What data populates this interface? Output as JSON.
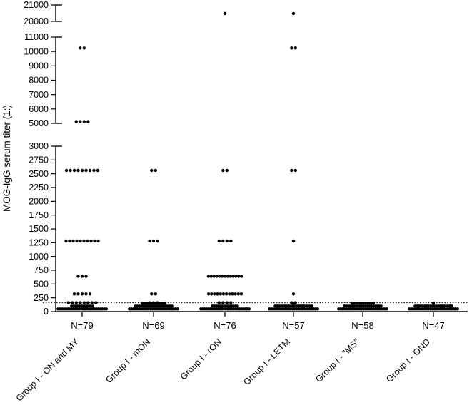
{
  "figure": {
    "background_color": "#ffffff",
    "dot_color": "#000000",
    "axis_color": "#000000",
    "cutoff_line_style": "dotted"
  },
  "chart_data": {
    "type": "scatter",
    "title": "",
    "xlabel": "",
    "ylabel": "MOG-IgG serum titer (1:)",
    "grid": false,
    "legend": false,
    "cutoff_titer": 160,
    "axis_segments": [
      {
        "min": 0,
        "max": 3000,
        "tick_step": 250
      },
      {
        "min": 5000,
        "max": 11000,
        "tick_step": 1000
      },
      {
        "min": 20000,
        "max": 21000,
        "tick_step": 1000
      }
    ],
    "y_tick_labels": [
      "0",
      "250",
      "500",
      "750",
      "1000",
      "1250",
      "1500",
      "1750",
      "2000",
      "2250",
      "2500",
      "2750",
      "3000",
      "5000",
      "6000",
      "7000",
      "8000",
      "9000",
      "10000",
      "11000",
      "20000",
      "21000"
    ],
    "groups": [
      {
        "label": "Group I - ON and MY",
        "n_label": "N=79",
        "n": 79,
        "titers": [
          {
            "titer": 10240,
            "count": 2
          },
          {
            "titer": 5120,
            "count": 4
          },
          {
            "titer": 2560,
            "count": 9
          },
          {
            "titer": 1280,
            "count": 10
          },
          {
            "titer": 640,
            "count": 3
          },
          {
            "titer": 320,
            "count": 5
          },
          {
            "titer": 160,
            "count": 8
          },
          {
            "titer": 0,
            "count": 38
          }
        ]
      },
      {
        "label": "Group I - mON",
        "n_label": "N=69",
        "n": 69,
        "titers": [
          {
            "titer": 2560,
            "count": 2
          },
          {
            "titer": 1280,
            "count": 3
          },
          {
            "titer": 320,
            "count": 2
          },
          {
            "titer": 160,
            "count": 3
          },
          {
            "titer": 0,
            "count": 59
          }
        ]
      },
      {
        "label": "Group I - rON",
        "n_label": "N=76",
        "n": 76,
        "titers": [
          {
            "titer": 20480,
            "count": 1
          },
          {
            "titer": 2560,
            "count": 2
          },
          {
            "titer": 1280,
            "count": 4
          },
          {
            "titer": 640,
            "count": 13
          },
          {
            "titer": 320,
            "count": 12
          },
          {
            "titer": 160,
            "count": 4
          },
          {
            "titer": 0,
            "count": 40
          }
        ]
      },
      {
        "label": "Group I - LETM",
        "n_label": "N=57",
        "n": 57,
        "titers": [
          {
            "titer": 20480,
            "count": 1
          },
          {
            "titer": 10240,
            "count": 2
          },
          {
            "titer": 2560,
            "count": 2
          },
          {
            "titer": 1280,
            "count": 1
          },
          {
            "titer": 320,
            "count": 1
          },
          {
            "titer": 160,
            "count": 2
          },
          {
            "titer": 0,
            "count": 48
          }
        ]
      },
      {
        "label": "Group I - \"MS\"",
        "n_label": "N=58",
        "n": 58,
        "titers": [
          {
            "titer": 0,
            "count": 58
          }
        ]
      },
      {
        "label": "Group I - OND",
        "n_label": "N=47",
        "n": 47,
        "titers": [
          {
            "titer": 0,
            "count": 47
          }
        ]
      }
    ]
  }
}
